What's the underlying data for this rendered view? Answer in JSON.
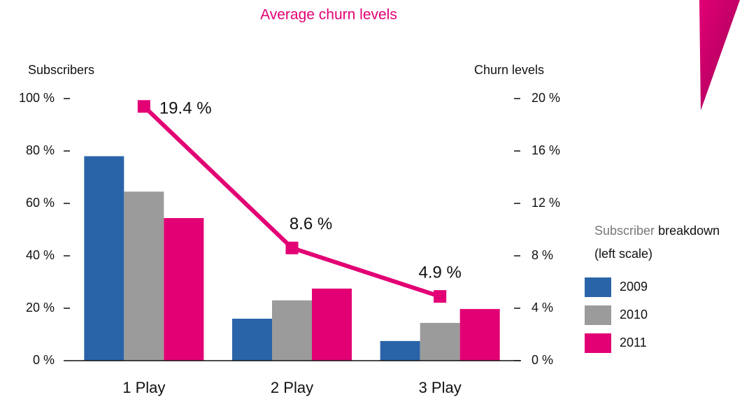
{
  "chart_data": {
    "type": "bar",
    "title": "Average churn levels",
    "y_label": "Subscribers",
    "y2_label": "Churn levels",
    "legend_title": [
      "Subscriber",
      "breakdown",
      "(left scale)"
    ],
    "categories": [
      "1 Play",
      "2 Play",
      "3 Play"
    ],
    "series": [
      {
        "name": "2009",
        "color": "#2a64a8",
        "values": [
          78,
          16,
          7.5
        ]
      },
      {
        "name": "2010",
        "color": "#9b9b9b",
        "values": [
          64.5,
          23,
          14.4
        ]
      },
      {
        "name": "2011",
        "color": "#e20074",
        "values": [
          54.4,
          27.5,
          19.7
        ]
      },
      {
        "type": "line",
        "axis": "y2",
        "color": "#e20074",
        "values": [
          19.4,
          8.6,
          4.9
        ],
        "value_labels": [
          "19.4 %",
          "8.6 %",
          "4.9 %"
        ]
      }
    ],
    "ylim": [
      0,
      100
    ],
    "yticks": [
      {
        "value": 0,
        "label": "0 %"
      },
      {
        "value": 20,
        "label": "20 %"
      },
      {
        "value": 40,
        "label": "40 %"
      },
      {
        "value": 60,
        "label": "60 %"
      },
      {
        "value": 80,
        "label": "80 %"
      },
      {
        "value": 100,
        "label": "100 %"
      }
    ],
    "y2lim": [
      0,
      20
    ],
    "y2ticks": [
      {
        "value": 0,
        "label": "0 %"
      },
      {
        "value": 4,
        "label": "4 %"
      },
      {
        "value": 8,
        "label": "8 %"
      },
      {
        "value": 12,
        "label": "12 %"
      },
      {
        "value": 16,
        "label": "16 %"
      },
      {
        "value": 20,
        "label": "20 %"
      }
    ]
  }
}
